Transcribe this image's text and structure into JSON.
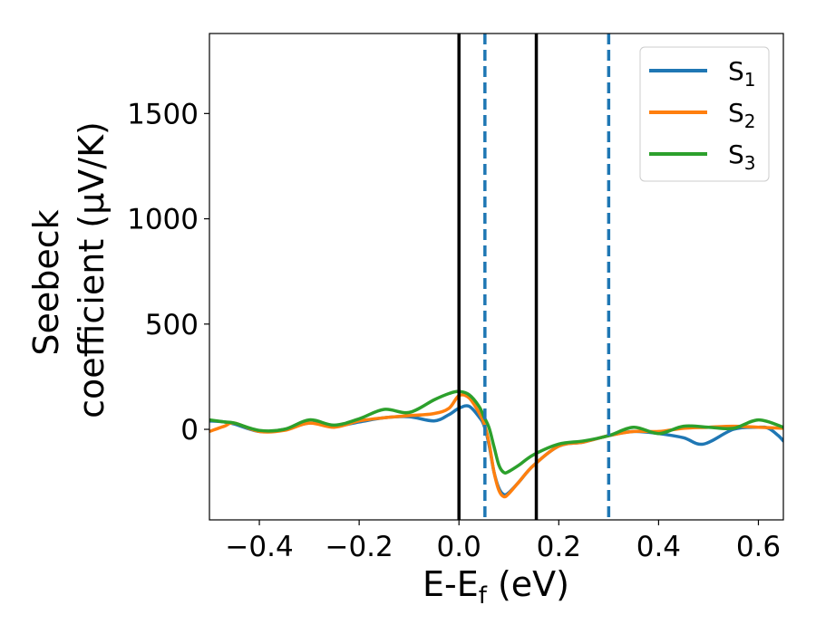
{
  "chart_data": {
    "type": "line",
    "xlabel": "E-E",
    "xlabel_sub": "f",
    "xlabel_unit": " (eV)",
    "ylabel_line1": "Seebeck",
    "ylabel_line2": "coefficient  (μV/K)",
    "xlim": [
      -0.5,
      0.65
    ],
    "ylim": [
      -430,
      1880
    ],
    "xticks": [
      -0.4,
      -0.2,
      0.0,
      0.2,
      0.4,
      0.6
    ],
    "xtick_labels": [
      "−0.4",
      "−0.2",
      "0.0",
      "0.2",
      "0.4",
      "0.6"
    ],
    "yticks": [
      0,
      500,
      1000,
      1500
    ],
    "ytick_labels": [
      "0",
      "500",
      "1000",
      "1500"
    ],
    "grid": false,
    "legend_position": "top-right",
    "series": [
      {
        "name": "S",
        "sub": "1",
        "color": "#1f77b4",
        "x": [
          -0.5,
          -0.47,
          -0.45,
          -0.4,
          -0.35,
          -0.3,
          -0.25,
          -0.2,
          -0.15,
          -0.1,
          -0.05,
          -0.02,
          0.0,
          0.02,
          0.04,
          0.05,
          0.06,
          0.07,
          0.08,
          0.09,
          0.1,
          0.12,
          0.15,
          0.2,
          0.25,
          0.3,
          0.35,
          0.4,
          0.45,
          0.49,
          0.55,
          0.6,
          0.62,
          0.64,
          0.65
        ],
        "y": [
          40,
          35,
          25,
          -10,
          0,
          30,
          15,
          35,
          55,
          60,
          40,
          70,
          100,
          110,
          60,
          20,
          -70,
          -200,
          -280,
          -310,
          -300,
          -250,
          -170,
          -80,
          -60,
          -30,
          -10,
          -20,
          -40,
          -70,
          0,
          10,
          5,
          -30,
          -55
        ]
      },
      {
        "name": "S",
        "sub": "2",
        "color": "#ff7f0e",
        "x": [
          -0.5,
          -0.47,
          -0.45,
          -0.4,
          -0.35,
          -0.3,
          -0.25,
          -0.2,
          -0.15,
          -0.1,
          -0.05,
          -0.02,
          0.0,
          0.02,
          0.04,
          0.05,
          0.06,
          0.07,
          0.08,
          0.09,
          0.1,
          0.12,
          0.15,
          0.2,
          0.25,
          0.3,
          0.35,
          0.4,
          0.45,
          0.5,
          0.55,
          0.6,
          0.65
        ],
        "y": [
          -10,
          15,
          30,
          -10,
          -5,
          30,
          10,
          40,
          55,
          65,
          75,
          100,
          160,
          150,
          80,
          30,
          -60,
          -200,
          -290,
          -320,
          -305,
          -250,
          -170,
          -80,
          -60,
          -30,
          -10,
          -10,
          5,
          10,
          15,
          10,
          5
        ]
      },
      {
        "name": "S",
        "sub": "3",
        "color": "#2ca02c",
        "x": [
          -0.5,
          -0.47,
          -0.45,
          -0.4,
          -0.35,
          -0.3,
          -0.25,
          -0.2,
          -0.15,
          -0.1,
          -0.05,
          -0.02,
          0.0,
          0.02,
          0.04,
          0.05,
          0.06,
          0.07,
          0.08,
          0.09,
          0.1,
          0.12,
          0.15,
          0.2,
          0.25,
          0.3,
          0.35,
          0.4,
          0.45,
          0.5,
          0.55,
          0.6,
          0.65
        ],
        "y": [
          45,
          35,
          30,
          -5,
          0,
          45,
          20,
          50,
          95,
          80,
          140,
          170,
          180,
          165,
          110,
          60,
          10,
          -80,
          -170,
          -205,
          -200,
          -170,
          -120,
          -70,
          -55,
          -30,
          10,
          -20,
          15,
          10,
          5,
          45,
          10
        ]
      }
    ],
    "vlines": [
      {
        "x": 0.0,
        "style": "solid",
        "color": "#000000"
      },
      {
        "x": 0.155,
        "style": "solid",
        "color": "#000000"
      },
      {
        "x": 0.052,
        "style": "dashed",
        "color": "#1f77b4"
      },
      {
        "x": 0.3,
        "style": "dashed",
        "color": "#1f77b4"
      }
    ]
  }
}
